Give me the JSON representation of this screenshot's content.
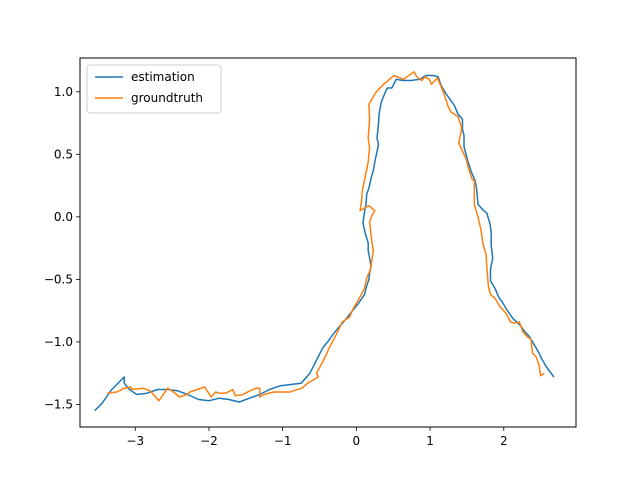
{
  "chart_data": {
    "type": "line",
    "title": "",
    "xlabel": "",
    "ylabel": "",
    "xlim": [
      -3.75,
      2.98
    ],
    "ylim": [
      -1.68,
      1.27
    ],
    "grid": false,
    "legend": {
      "placement": "top-left"
    },
    "xticks": [
      {
        "value": -3,
        "label": "−3"
      },
      {
        "value": -2,
        "label": "−2"
      },
      {
        "value": -1,
        "label": "−1"
      },
      {
        "value": 0,
        "label": "0"
      },
      {
        "value": 1,
        "label": "1"
      },
      {
        "value": 2,
        "label": "2"
      }
    ],
    "yticks": [
      {
        "value": -1.5,
        "label": "−1.5"
      },
      {
        "value": -1.0,
        "label": "−1.0"
      },
      {
        "value": -0.5,
        "label": "−0.5"
      },
      {
        "value": 0.0,
        "label": "0.0"
      },
      {
        "value": 0.5,
        "label": "0.5"
      },
      {
        "value": 1.0,
        "label": "1.0"
      }
    ],
    "series": [
      {
        "name": "estimation",
        "color": "#1f77b4",
        "points": [
          [
            -3.55,
            -1.55
          ],
          [
            -3.45,
            -1.49
          ],
          [
            -3.32,
            -1.38
          ],
          [
            -3.15,
            -1.28
          ],
          [
            -3.15,
            -1.33
          ],
          [
            -3.08,
            -1.38
          ],
          [
            -2.98,
            -1.42
          ],
          [
            -2.84,
            -1.41
          ],
          [
            -2.7,
            -1.38
          ],
          [
            -2.56,
            -1.38
          ],
          [
            -2.43,
            -1.39
          ],
          [
            -2.29,
            -1.42
          ],
          [
            -2.14,
            -1.46
          ],
          [
            -2.0,
            -1.47
          ],
          [
            -1.86,
            -1.45
          ],
          [
            -1.73,
            -1.46
          ],
          [
            -1.59,
            -1.48
          ],
          [
            -1.45,
            -1.45
          ],
          [
            -1.31,
            -1.42
          ],
          [
            -1.18,
            -1.38
          ],
          [
            -1.03,
            -1.35
          ],
          [
            -0.89,
            -1.34
          ],
          [
            -0.75,
            -1.33
          ],
          [
            -0.63,
            -1.25
          ],
          [
            -0.52,
            -1.12
          ],
          [
            -0.46,
            -1.05
          ],
          [
            -0.39,
            -1.0
          ],
          [
            -0.33,
            -0.95
          ],
          [
            -0.25,
            -0.89
          ],
          [
            -0.16,
            -0.83
          ],
          [
            -0.08,
            -0.77
          ],
          [
            0.03,
            -0.69
          ],
          [
            0.11,
            -0.62
          ],
          [
            0.14,
            -0.55
          ],
          [
            0.17,
            -0.5
          ],
          [
            0.18,
            -0.45
          ],
          [
            0.2,
            -0.4
          ],
          [
            0.18,
            -0.33
          ],
          [
            0.16,
            -0.27
          ],
          [
            0.16,
            -0.21
          ],
          [
            0.12,
            -0.13
          ],
          [
            0.09,
            -0.05
          ],
          [
            0.11,
            0.04
          ],
          [
            0.13,
            0.1
          ],
          [
            0.14,
            0.18
          ],
          [
            0.17,
            0.23
          ],
          [
            0.2,
            0.31
          ],
          [
            0.23,
            0.37
          ],
          [
            0.25,
            0.44
          ],
          [
            0.28,
            0.52
          ],
          [
            0.3,
            0.58
          ],
          [
            0.28,
            0.63
          ],
          [
            0.29,
            0.68
          ],
          [
            0.3,
            0.75
          ],
          [
            0.31,
            0.83
          ],
          [
            0.34,
            0.92
          ],
          [
            0.38,
            0.98
          ],
          [
            0.42,
            1.03
          ],
          [
            0.48,
            1.03
          ],
          [
            0.54,
            1.1
          ],
          [
            0.63,
            1.09
          ],
          [
            0.74,
            1.09
          ],
          [
            0.86,
            1.1
          ],
          [
            0.94,
            1.13
          ],
          [
            1.04,
            1.13
          ],
          [
            1.11,
            1.12
          ],
          [
            1.15,
            1.05
          ],
          [
            1.21,
            0.99
          ],
          [
            1.27,
            0.94
          ],
          [
            1.33,
            0.89
          ],
          [
            1.38,
            0.82
          ],
          [
            1.44,
            0.78
          ],
          [
            1.44,
            0.7
          ],
          [
            1.46,
            0.65
          ],
          [
            1.46,
            0.56
          ],
          [
            1.51,
            0.45
          ],
          [
            1.56,
            0.36
          ],
          [
            1.61,
            0.29
          ],
          [
            1.63,
            0.23
          ],
          [
            1.65,
            0.1
          ],
          [
            1.71,
            0.06
          ],
          [
            1.77,
            0.03
          ],
          [
            1.81,
            -0.05
          ],
          [
            1.83,
            -0.12
          ],
          [
            1.83,
            -0.23
          ],
          [
            1.85,
            -0.33
          ],
          [
            1.82,
            -0.42
          ],
          [
            1.82,
            -0.51
          ],
          [
            1.88,
            -0.57
          ],
          [
            1.93,
            -0.64
          ],
          [
            1.99,
            -0.69
          ],
          [
            2.05,
            -0.75
          ],
          [
            2.12,
            -0.81
          ],
          [
            2.21,
            -0.86
          ],
          [
            2.29,
            -0.92
          ],
          [
            2.35,
            -0.96
          ],
          [
            2.41,
            -1.02
          ],
          [
            2.47,
            -1.08
          ],
          [
            2.52,
            -1.14
          ],
          [
            2.58,
            -1.2
          ],
          [
            2.63,
            -1.24
          ],
          [
            2.68,
            -1.28
          ]
        ]
      },
      {
        "name": "groundtruth",
        "color": "#ff7f0e",
        "points": [
          [
            -3.38,
            -1.41
          ],
          [
            -3.25,
            -1.4
          ],
          [
            -3.15,
            -1.37
          ],
          [
            -3.06,
            -1.36
          ],
          [
            -3.05,
            -1.38
          ],
          [
            -2.9,
            -1.37
          ],
          [
            -2.8,
            -1.39
          ],
          [
            -2.68,
            -1.47
          ],
          [
            -2.56,
            -1.37
          ],
          [
            -2.48,
            -1.4
          ],
          [
            -2.4,
            -1.44
          ],
          [
            -2.3,
            -1.42
          ],
          [
            -2.26,
            -1.4
          ],
          [
            -2.16,
            -1.38
          ],
          [
            -2.06,
            -1.36
          ],
          [
            -1.97,
            -1.44
          ],
          [
            -1.91,
            -1.4
          ],
          [
            -1.86,
            -1.41
          ],
          [
            -1.77,
            -1.41
          ],
          [
            -1.68,
            -1.38
          ],
          [
            -1.64,
            -1.43
          ],
          [
            -1.54,
            -1.42
          ],
          [
            -1.44,
            -1.39
          ],
          [
            -1.36,
            -1.37
          ],
          [
            -1.31,
            -1.37
          ],
          [
            -1.31,
            -1.44
          ],
          [
            -1.25,
            -1.42
          ],
          [
            -1.12,
            -1.4
          ],
          [
            -1.0,
            -1.4
          ],
          [
            -0.9,
            -1.4
          ],
          [
            -0.85,
            -1.39
          ],
          [
            -0.74,
            -1.37
          ],
          [
            -0.66,
            -1.33
          ],
          [
            -0.52,
            -1.28
          ],
          [
            -0.54,
            -1.25
          ],
          [
            -0.44,
            -1.14
          ],
          [
            -0.37,
            -1.05
          ],
          [
            -0.28,
            -0.95
          ],
          [
            -0.19,
            -0.84
          ],
          [
            -0.09,
            -0.8
          ],
          [
            -0.04,
            -0.73
          ],
          [
            0.04,
            -0.65
          ],
          [
            0.11,
            -0.57
          ],
          [
            0.14,
            -0.49
          ],
          [
            0.19,
            -0.42
          ],
          [
            0.23,
            -0.27
          ],
          [
            0.21,
            -0.2
          ],
          [
            0.2,
            -0.15
          ],
          [
            0.18,
            -0.04
          ],
          [
            0.21,
            0.01
          ],
          [
            0.25,
            0.05
          ],
          [
            0.17,
            0.09
          ],
          [
            0.05,
            0.05
          ],
          [
            0.07,
            0.12
          ],
          [
            0.08,
            0.21
          ],
          [
            0.12,
            0.32
          ],
          [
            0.16,
            0.44
          ],
          [
            0.18,
            0.55
          ],
          [
            0.16,
            0.63
          ],
          [
            0.18,
            0.78
          ],
          [
            0.17,
            0.9
          ],
          [
            0.27,
            1.0
          ],
          [
            0.37,
            1.06
          ],
          [
            0.51,
            1.13
          ],
          [
            0.64,
            1.1
          ],
          [
            0.78,
            1.16
          ],
          [
            0.82,
            1.12
          ],
          [
            0.89,
            1.09
          ],
          [
            0.93,
            1.12
          ],
          [
            0.99,
            1.1
          ],
          [
            1.02,
            1.06
          ],
          [
            1.1,
            1.11
          ],
          [
            1.18,
            1.0
          ],
          [
            1.24,
            0.89
          ],
          [
            1.28,
            0.84
          ],
          [
            1.38,
            0.8
          ],
          [
            1.43,
            0.71
          ],
          [
            1.39,
            0.59
          ],
          [
            1.49,
            0.46
          ],
          [
            1.52,
            0.39
          ],
          [
            1.57,
            0.3
          ],
          [
            1.6,
            0.29
          ],
          [
            1.6,
            0.1
          ],
          [
            1.65,
            0.0
          ],
          [
            1.69,
            -0.1
          ],
          [
            1.72,
            -0.22
          ],
          [
            1.76,
            -0.3
          ],
          [
            1.77,
            -0.4
          ],
          [
            1.79,
            -0.55
          ],
          [
            1.82,
            -0.62
          ],
          [
            1.88,
            -0.65
          ],
          [
            1.95,
            -0.72
          ],
          [
            2.03,
            -0.77
          ],
          [
            2.09,
            -0.84
          ],
          [
            2.15,
            -0.85
          ],
          [
            2.21,
            -0.84
          ],
          [
            2.26,
            -0.92
          ],
          [
            2.32,
            -0.96
          ],
          [
            2.37,
            -0.98
          ],
          [
            2.39,
            -1.09
          ],
          [
            2.44,
            -1.12
          ],
          [
            2.48,
            -1.19
          ],
          [
            2.5,
            -1.27
          ],
          [
            2.55,
            -1.25
          ]
        ]
      }
    ]
  }
}
